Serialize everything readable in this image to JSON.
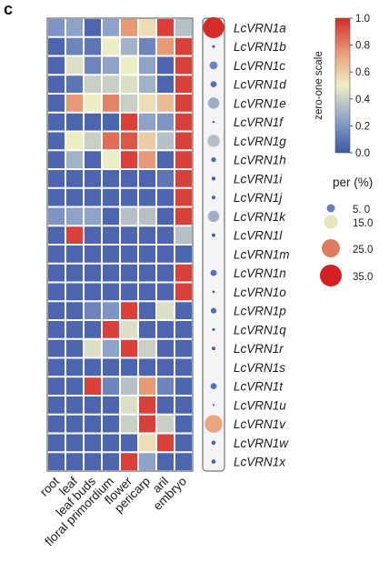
{
  "panel_label": "c",
  "chart_data": {
    "type": "heatmap",
    "columns": [
      "root",
      "leaf",
      "leaf buds",
      "floral primordium",
      "flower",
      "pericarp",
      "aril",
      "embryo"
    ],
    "rows": [
      "LcVRN1a",
      "LcVRN1b",
      "LcVRN1c",
      "LcVRN1d",
      "LcVRN1e",
      "LcVRN1f",
      "LcVRN1g",
      "LcVRN1h",
      "LcVRN1i",
      "LcVRN1j",
      "LcVRN1k",
      "LcVRN1l",
      "LcVRN1m",
      "LcVRN1n",
      "LcVRN1o",
      "LcVRN1p",
      "LcVRN1q",
      "LcVRN1r",
      "LcVRN1s",
      "LcVRN1t",
      "LcVRN1u",
      "LcVRN1v",
      "LcVRN1w",
      "LcVRN1x"
    ],
    "values": [
      [
        0.2,
        0.25,
        0.05,
        0.25,
        0.75,
        0.55,
        0.95,
        0.35
      ],
      [
        0.05,
        0.15,
        0.1,
        0.5,
        0.3,
        0.15,
        0.75,
        0.95
      ],
      [
        0.05,
        0.45,
        0.15,
        0.25,
        0.5,
        0.25,
        0.05,
        0.95
      ],
      [
        0.05,
        0.1,
        0.4,
        0.4,
        0.45,
        0.3,
        0.05,
        0.95
      ],
      [
        0.05,
        0.75,
        0.5,
        0.8,
        0.4,
        0.55,
        0.65,
        0.95
      ],
      [
        0.05,
        0.05,
        0.05,
        0.05,
        0.95,
        0.25,
        0.2,
        0.95
      ],
      [
        0.05,
        0.5,
        0.4,
        0.85,
        0.9,
        0.6,
        0.35,
        0.95
      ],
      [
        0.05,
        0.3,
        0.05,
        0.5,
        0.95,
        0.75,
        0.05,
        0.95
      ],
      [
        0.05,
        0.05,
        0.05,
        0.05,
        0.05,
        0.05,
        0.1,
        0.95
      ],
      [
        0.05,
        0.05,
        0.05,
        0.05,
        0.05,
        0.05,
        0.05,
        0.95
      ],
      [
        0.2,
        0.25,
        0.25,
        0.05,
        0.35,
        0.35,
        0.05,
        0.95
      ],
      [
        0.05,
        0.95,
        0.05,
        0.05,
        0.05,
        0.05,
        0.05,
        0.35
      ],
      [
        0.05,
        0.05,
        0.05,
        0.05,
        0.05,
        0.05,
        0.05,
        0.05
      ],
      [
        0.05,
        0.05,
        0.05,
        0.05,
        0.05,
        0.05,
        0.05,
        0.95
      ],
      [
        0.05,
        0.05,
        0.05,
        0.05,
        0.05,
        0.05,
        0.05,
        0.95
      ],
      [
        0.05,
        0.05,
        0.15,
        0.2,
        0.95,
        0.05,
        0.45,
        0.05
      ],
      [
        0.05,
        0.05,
        0.05,
        0.95,
        0.45,
        0.05,
        0.05,
        0.05
      ],
      [
        0.05,
        0.05,
        0.45,
        0.25,
        0.95,
        0.4,
        0.05,
        0.05
      ],
      [
        0.05,
        0.05,
        0.05,
        0.05,
        0.05,
        0.05,
        0.05,
        0.05
      ],
      [
        0.05,
        0.05,
        0.95,
        0.15,
        0.35,
        0.75,
        0.15,
        0.05
      ],
      [
        0.05,
        0.05,
        0.05,
        0.05,
        0.45,
        0.95,
        0.05,
        0.05
      ],
      [
        0.05,
        0.05,
        0.05,
        0.05,
        0.4,
        0.95,
        0.4,
        0.05
      ],
      [
        0.05,
        0.05,
        0.05,
        0.05,
        0.05,
        0.55,
        0.95,
        0.05
      ],
      [
        0.05,
        0.05,
        0.05,
        0.05,
        0.95,
        0.25,
        0.05,
        0.05
      ]
    ],
    "per_percent": [
      35.0,
      0.6,
      5.0,
      3.0,
      10.0,
      0.4,
      12.0,
      1.8,
      1.2,
      1.0,
      10.0,
      1.0,
      0.0,
      3.0,
      0.5,
      2.5,
      0.6,
      1.0,
      0.0,
      3.0,
      0.3,
      25.0,
      1.4,
      1.4
    ],
    "colorbar": {
      "label": "zero-one scale",
      "ticks": [
        "1.0",
        "0.8",
        "0.6",
        "0.4",
        "0.2",
        "0.0"
      ],
      "range": [
        0,
        1
      ],
      "colors": {
        "low": "#3a57a8",
        "mid": "#eeeec4",
        "high": "#d42b2b"
      }
    },
    "size_legend": {
      "title": "per (%)",
      "entries": [
        {
          "label": "5. 0",
          "value": 5.0
        },
        {
          "label": "15.0",
          "value": 15.0
        },
        {
          "label": "25.0",
          "value": 25.0
        },
        {
          "label": "35.0",
          "value": 35.0
        }
      ]
    }
  }
}
